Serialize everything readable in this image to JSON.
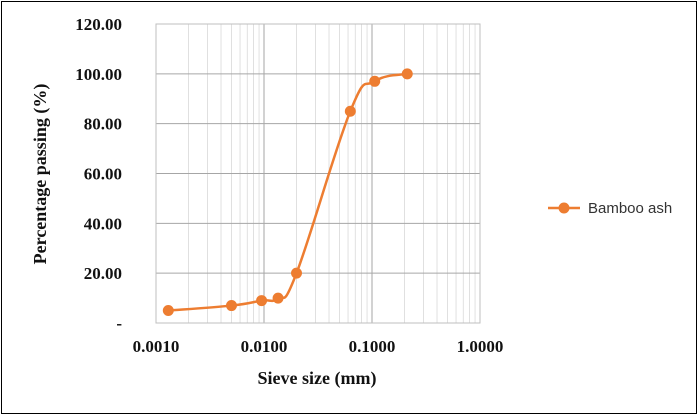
{
  "chart_data": {
    "type": "scatter",
    "xlabel": "Sieve size (mm)",
    "ylabel": "Percentage passing (%)",
    "x_scale": "log",
    "xlim": [
      0.001,
      1.0
    ],
    "ylim": [
      0,
      120
    ],
    "x_ticks": [
      "0.0010",
      "0.0100",
      "0.1000",
      "1.0000"
    ],
    "x_tick_values": [
      0.001,
      0.01,
      0.1,
      1.0
    ],
    "y_ticks": [
      "-",
      "20.00",
      "40.00",
      "60.00",
      "80.00",
      "100.00",
      "120.00"
    ],
    "y_tick_values": [
      0,
      20,
      40,
      60,
      80,
      100,
      120
    ],
    "grid": true,
    "legend_position": "right",
    "series": [
      {
        "name": "Bamboo ash",
        "color": "#ED7D31",
        "smooth": true,
        "x": [
          0.0013,
          0.005,
          0.0095,
          0.0135,
          0.02,
          0.063,
          0.106,
          0.212
        ],
        "y": [
          5.0,
          7.0,
          9.0,
          10.0,
          20.0,
          85.0,
          97.0,
          100.0
        ]
      }
    ]
  }
}
